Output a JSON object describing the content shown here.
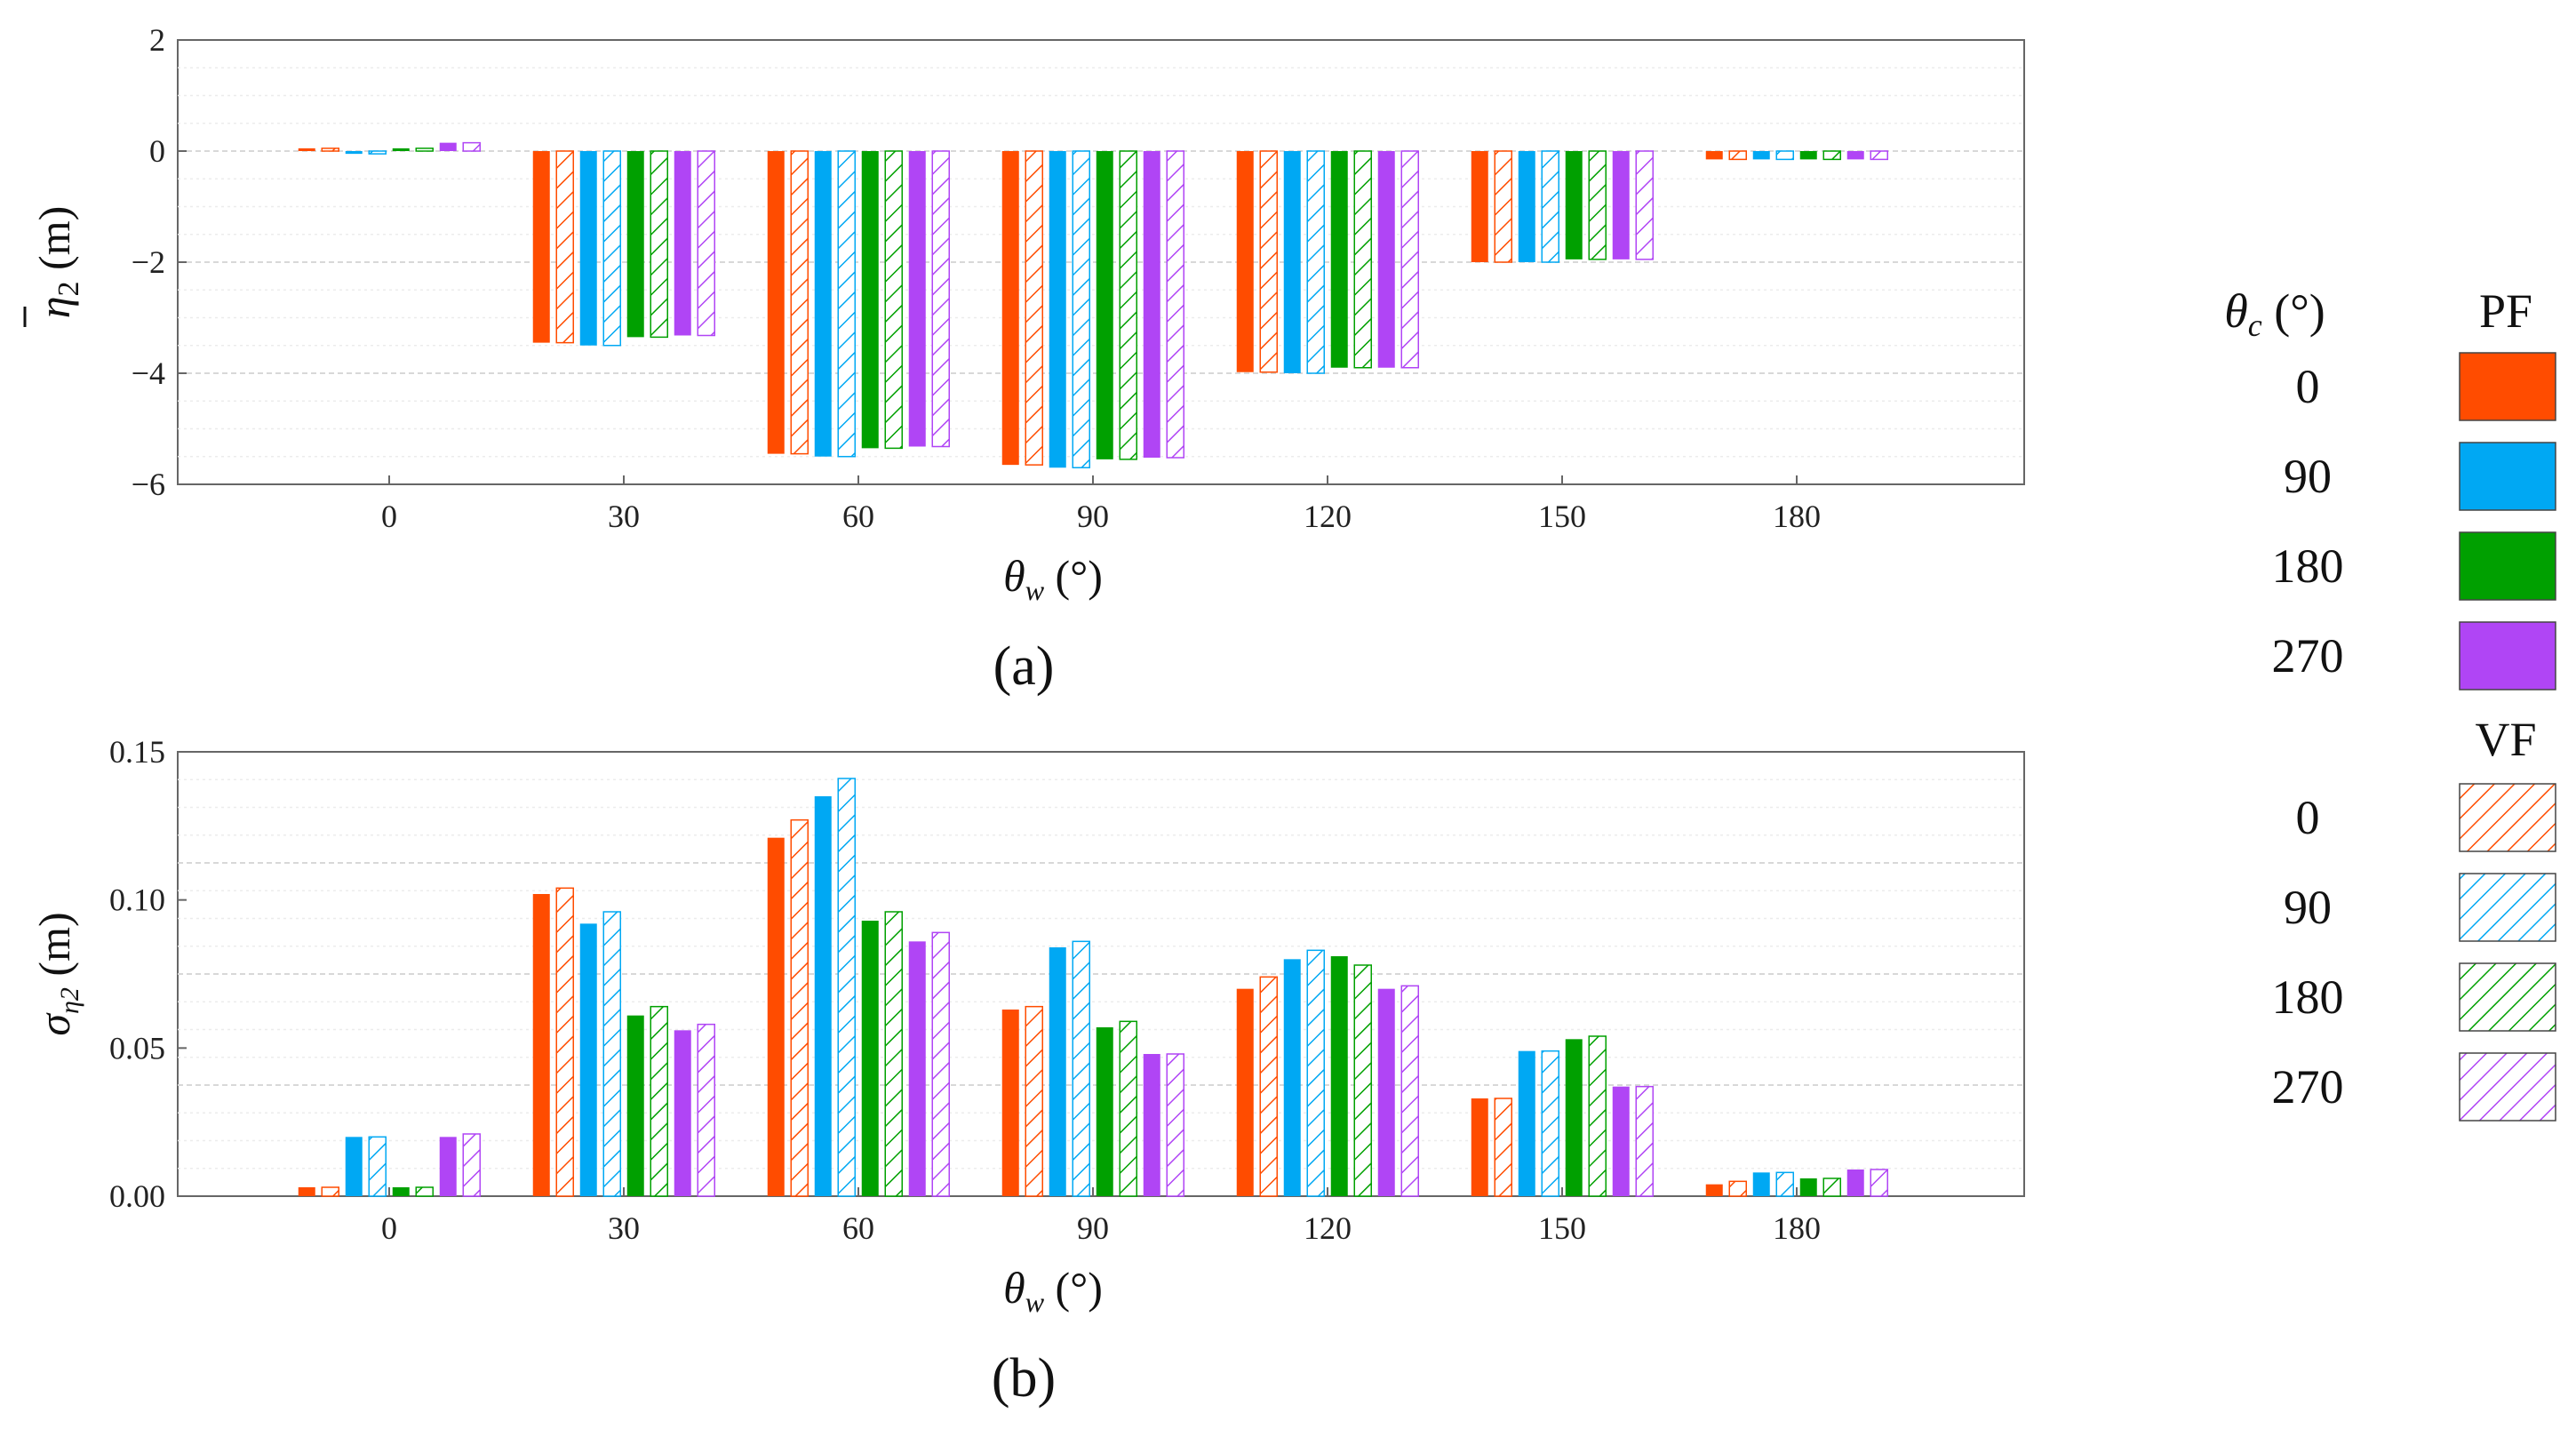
{
  "chart_data": [
    {
      "panel_label": "(a)",
      "type": "bar",
      "title": "",
      "xlabel": "θw (°)",
      "xlabel_main": "θ",
      "xlabel_sub": "w",
      "xlabel_unit": " (°)",
      "ylabel": "η̄2 (m)",
      "ylabel_main": "η",
      "ylabel_sub": "2",
      "ylabel_unit": " (m)",
      "ylim": [
        -6,
        2
      ],
      "yticks": [
        2,
        0,
        -2,
        -4,
        -6
      ],
      "ytick_labels": [
        "2",
        "0",
        "−2",
        "−4",
        "−6"
      ],
      "categories": [
        "0",
        "30",
        "60",
        "90",
        "120",
        "150",
        "180"
      ],
      "grid": true,
      "series": [
        {
          "name": "PF 0",
          "values": [
            0.05,
            -3.45,
            -5.45,
            -5.65,
            -3.98,
            -2.0,
            -0.15
          ]
        },
        {
          "name": "VF 0",
          "values": [
            0.05,
            -3.45,
            -5.45,
            -5.65,
            -3.98,
            -2.0,
            -0.15
          ]
        },
        {
          "name": "PF 90",
          "values": [
            -0.05,
            -3.5,
            -5.5,
            -5.7,
            -4.0,
            -2.0,
            -0.15
          ]
        },
        {
          "name": "VF 90",
          "values": [
            -0.05,
            -3.5,
            -5.5,
            -5.7,
            -4.0,
            -2.0,
            -0.15
          ]
        },
        {
          "name": "PF 180",
          "values": [
            0.05,
            -3.35,
            -5.35,
            -5.55,
            -3.9,
            -1.95,
            -0.15
          ]
        },
        {
          "name": "VF 180",
          "values": [
            0.05,
            -3.35,
            -5.35,
            -5.55,
            -3.9,
            -1.95,
            -0.15
          ]
        },
        {
          "name": "PF 270",
          "values": [
            0.15,
            -3.32,
            -5.32,
            -5.52,
            -3.9,
            -1.95,
            -0.15
          ]
        },
        {
          "name": "VF 270",
          "values": [
            0.15,
            -3.32,
            -5.32,
            -5.52,
            -3.9,
            -1.95,
            -0.15
          ]
        }
      ]
    },
    {
      "panel_label": "(b)",
      "type": "bar",
      "title": "",
      "xlabel": "θw (°)",
      "xlabel_main": "θ",
      "xlabel_sub": "w",
      "xlabel_unit": " (°)",
      "ylabel": "ση2 (m)",
      "ylabel_main": "σ",
      "ylabel_sub": "η2",
      "ylabel_unit": " (m)",
      "ylim": [
        0,
        0.15
      ],
      "yticks": [
        0.15,
        0.1,
        0.05,
        0.0
      ],
      "ytick_labels": [
        "0.15",
        "0.10",
        "0.05",
        "0.00"
      ],
      "categories": [
        "0",
        "30",
        "60",
        "90",
        "120",
        "150",
        "180"
      ],
      "grid": true,
      "series": [
        {
          "name": "PF 0",
          "values": [
            0.003,
            0.102,
            0.121,
            0.063,
            0.07,
            0.033,
            0.004
          ]
        },
        {
          "name": "VF 0",
          "values": [
            0.003,
            0.104,
            0.127,
            0.064,
            0.074,
            0.033,
            0.005
          ]
        },
        {
          "name": "PF 90",
          "values": [
            0.02,
            0.092,
            0.135,
            0.084,
            0.08,
            0.049,
            0.008
          ]
        },
        {
          "name": "VF 90",
          "values": [
            0.02,
            0.096,
            0.141,
            0.086,
            0.083,
            0.049,
            0.008
          ]
        },
        {
          "name": "PF 180",
          "values": [
            0.003,
            0.061,
            0.093,
            0.057,
            0.081,
            0.053,
            0.006
          ]
        },
        {
          "name": "VF 180",
          "values": [
            0.003,
            0.064,
            0.096,
            0.059,
            0.078,
            0.054,
            0.006
          ]
        },
        {
          "name": "PF 270",
          "values": [
            0.02,
            0.056,
            0.086,
            0.048,
            0.07,
            0.037,
            0.009
          ]
        },
        {
          "name": "VF 270",
          "values": [
            0.021,
            0.058,
            0.089,
            0.048,
            0.071,
            0.037,
            0.009
          ]
        }
      ]
    }
  ],
  "legend": {
    "header_symbol": "θ",
    "header_sub": "c",
    "header_unit": " (°)",
    "pf_title": "PF",
    "vf_title": "VF",
    "entries": [
      {
        "label": "0",
        "color": "#ff4c00"
      },
      {
        "label": "90",
        "color": "#00a8f3"
      },
      {
        "label": "180",
        "color": "#00a000"
      },
      {
        "label": "270",
        "color": "#b045f5"
      }
    ]
  }
}
